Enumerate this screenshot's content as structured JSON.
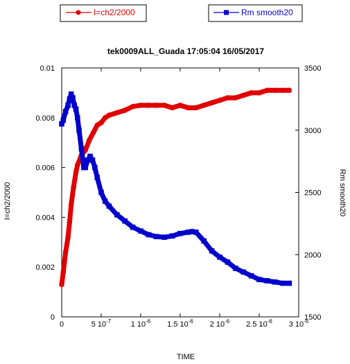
{
  "chart_data": {
    "type": "line",
    "title": "tek0009ALL_Guada 17:05:04  16/05/2017",
    "xlabel": "TIME",
    "ylabel_left": "I=ch2/2000",
    "ylabel_right": "Rm smooth20",
    "xlim": [
      0,
      3e-06
    ],
    "ylim_left": [
      0,
      0.01
    ],
    "ylim_right": [
      1500,
      3500
    ],
    "x_ticks": [
      {
        "value": 0,
        "mant": "0",
        "exp": ""
      },
      {
        "value": 5e-07,
        "mant": "5 10",
        "exp": "-7"
      },
      {
        "value": 1e-06,
        "mant": "1 10",
        "exp": "-6"
      },
      {
        "value": 1.5e-06,
        "mant": "1.5 10",
        "exp": "-6"
      },
      {
        "value": 2e-06,
        "mant": "2 10",
        "exp": "-6"
      },
      {
        "value": 2.5e-06,
        "mant": "2.5 10",
        "exp": "-6"
      },
      {
        "value": 3e-06,
        "mant": "3 10",
        "exp": "-6"
      }
    ],
    "y_ticks_left": [
      "0",
      "0.002",
      "0.004",
      "0.006",
      "0.008",
      "0.01"
    ],
    "y_ticks_right": [
      "1500",
      "2000",
      "2500",
      "3000",
      "3500"
    ],
    "legend_placement": "top",
    "series": [
      {
        "name": "I=ch2/2000",
        "axis": "left",
        "color": "#e00000",
        "marker": "circle",
        "x": [
          0,
          2e-08,
          5e-08,
          8e-08,
          1e-07,
          1.2e-07,
          1.5e-07,
          1.8e-07,
          2e-07,
          2.5e-07,
          3e-07,
          3.5e-07,
          4e-07,
          4.5e-07,
          5e-07,
          5.5e-07,
          6e-07,
          7e-07,
          8e-07,
          9e-07,
          1e-06,
          1.1e-06,
          1.2e-06,
          1.3e-06,
          1.4e-06,
          1.5e-06,
          1.6e-06,
          1.7e-06,
          1.8e-06,
          1.9e-06,
          2e-06,
          2.1e-06,
          2.2e-06,
          2.3e-06,
          2.4e-06,
          2.5e-06,
          2.6e-06,
          2.7e-06,
          2.8e-06,
          2.88e-06
        ],
        "y": [
          0.0013,
          0.0018,
          0.0026,
          0.0032,
          0.0038,
          0.0045,
          0.0052,
          0.0058,
          0.0061,
          0.0065,
          0.0067,
          0.0071,
          0.0074,
          0.0077,
          0.0078,
          0.008,
          0.0081,
          0.0082,
          0.0083,
          0.00845,
          0.0085,
          0.0085,
          0.0085,
          0.0085,
          0.0084,
          0.0085,
          0.0084,
          0.0084,
          0.0085,
          0.0086,
          0.0087,
          0.0088,
          0.0088,
          0.0089,
          0.009,
          0.009,
          0.0091,
          0.0091,
          0.0091,
          0.0091
        ]
      },
      {
        "name": "Rm smooth20",
        "axis": "right",
        "color": "#0000cc",
        "marker": "square",
        "x": [
          0,
          2e-08,
          5e-08,
          8e-08,
          1e-07,
          1.2e-07,
          1.4e-07,
          1.6e-07,
          1.8e-07,
          2e-07,
          2.2e-07,
          2.5e-07,
          2.8e-07,
          3e-07,
          3.3e-07,
          3.6e-07,
          3.9e-07,
          4.2e-07,
          4.5e-07,
          5e-07,
          5.5e-07,
          6e-07,
          7e-07,
          8e-07,
          9e-07,
          1e-06,
          1.1e-06,
          1.2e-06,
          1.3e-06,
          1.4e-06,
          1.5e-06,
          1.6e-06,
          1.65e-06,
          1.7e-06,
          1.8e-06,
          1.9e-06,
          2e-06,
          2.1e-06,
          2.2e-06,
          2.3e-06,
          2.4e-06,
          2.5e-06,
          2.6e-06,
          2.7e-06,
          2.8e-06,
          2.88e-06
        ],
        "y": [
          3050,
          3080,
          3150,
          3200,
          3250,
          3290,
          3260,
          3200,
          3170,
          3100,
          3000,
          2850,
          2700,
          2700,
          2760,
          2790,
          2760,
          2700,
          2620,
          2500,
          2430,
          2390,
          2320,
          2270,
          2220,
          2190,
          2160,
          2145,
          2140,
          2150,
          2170,
          2180,
          2185,
          2180,
          2110,
          2030,
          1980,
          1940,
          1890,
          1860,
          1830,
          1800,
          1790,
          1780,
          1770,
          1770
        ]
      }
    ]
  }
}
